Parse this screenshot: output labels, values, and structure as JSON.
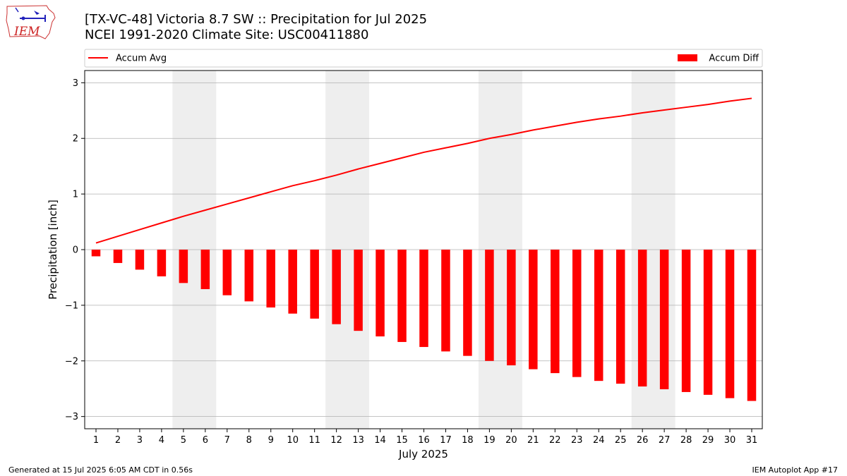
{
  "header": {
    "title_line1": "[TX-VC-48] Victoria 8.7 SW :: Precipitation for Jul 2025",
    "title_line2": "NCEI 1991-2020 Climate Site: USC00411880"
  },
  "logo": {
    "text": "IEM"
  },
  "footer": {
    "left": "Generated at 15 Jul 2025 6:05 AM CDT in 0.56s",
    "right": "IEM Autoplot App #17"
  },
  "colors": {
    "series": "#ff0000",
    "weekend_shade": "#eeeeee",
    "grid": "#b0b0b0"
  },
  "chart_data": {
    "type": "bar",
    "xlabel": "July 2025",
    "ylabel": "Precipitation [inch]",
    "ylim": [
      -3.22,
      3.22
    ],
    "yticks": [
      -3,
      -2,
      -1,
      0,
      1,
      2,
      3
    ],
    "ytick_labels": [
      "−3",
      "−2",
      "−1",
      "0",
      "1",
      "2",
      "3"
    ],
    "categories": [
      "1",
      "2",
      "3",
      "4",
      "5",
      "6",
      "7",
      "8",
      "9",
      "10",
      "11",
      "12",
      "13",
      "14",
      "15",
      "16",
      "17",
      "18",
      "19",
      "20",
      "21",
      "22",
      "23",
      "24",
      "25",
      "26",
      "27",
      "28",
      "29",
      "30",
      "31"
    ],
    "grid": "horizontal",
    "legend_placement": "top",
    "shaded_days": [
      [
        5,
        6
      ],
      [
        12,
        13
      ],
      [
        19,
        20
      ],
      [
        26,
        27
      ]
    ],
    "series": [
      {
        "name": "Accum Avg",
        "kind": "line",
        "values": [
          0.12,
          0.24,
          0.36,
          0.48,
          0.6,
          0.71,
          0.82,
          0.93,
          1.04,
          1.15,
          1.24,
          1.34,
          1.45,
          1.55,
          1.65,
          1.75,
          1.83,
          1.91,
          2.0,
          2.07,
          2.15,
          2.22,
          2.29,
          2.35,
          2.4,
          2.46,
          2.51,
          2.56,
          2.61,
          2.67,
          2.72
        ]
      },
      {
        "name": "Accum Diff",
        "kind": "bar",
        "values": [
          -0.12,
          -0.24,
          -0.36,
          -0.48,
          -0.6,
          -0.71,
          -0.82,
          -0.93,
          -1.04,
          -1.15,
          -1.24,
          -1.34,
          -1.46,
          -1.56,
          -1.66,
          -1.75,
          -1.83,
          -1.91,
          -2.0,
          -2.08,
          -2.15,
          -2.22,
          -2.29,
          -2.36,
          -2.41,
          -2.46,
          -2.51,
          -2.56,
          -2.61,
          -2.67,
          -2.72
        ]
      }
    ]
  }
}
